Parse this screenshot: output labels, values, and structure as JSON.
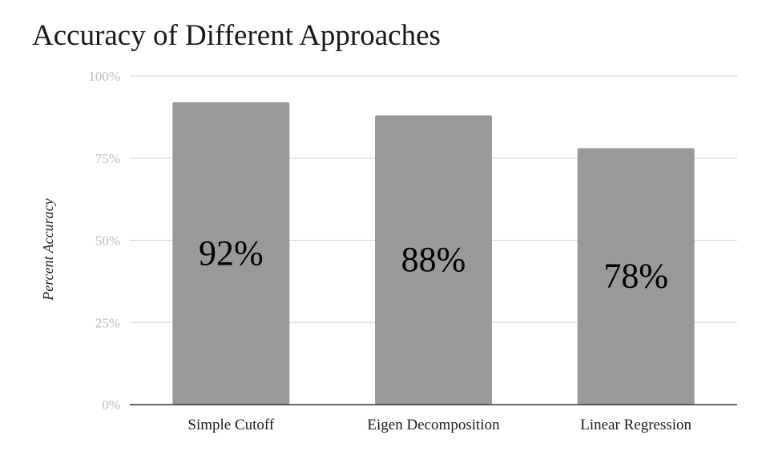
{
  "chart_data": {
    "type": "bar",
    "title": "Accuracy of Different Approaches",
    "xlabel": "",
    "ylabel": "Percent Accuracy",
    "categories": [
      "Simple Cutoff",
      "Eigen Decomposition",
      "Linear Regression"
    ],
    "values": [
      92,
      88,
      78
    ],
    "data_labels": [
      "92%",
      "88%",
      "78%"
    ],
    "ylim": [
      0,
      100
    ],
    "yticks": [
      0,
      25,
      50,
      75,
      100
    ],
    "ytick_labels": [
      "0%",
      "25%",
      "50%",
      "75%",
      "100%"
    ],
    "grid": true,
    "legend": "none",
    "colors": {
      "bar": "#999999",
      "grid": "#d9d9d9",
      "axis": "#333333",
      "tick_text": "#bdbdbd",
      "text": "#1a1a1a"
    }
  }
}
